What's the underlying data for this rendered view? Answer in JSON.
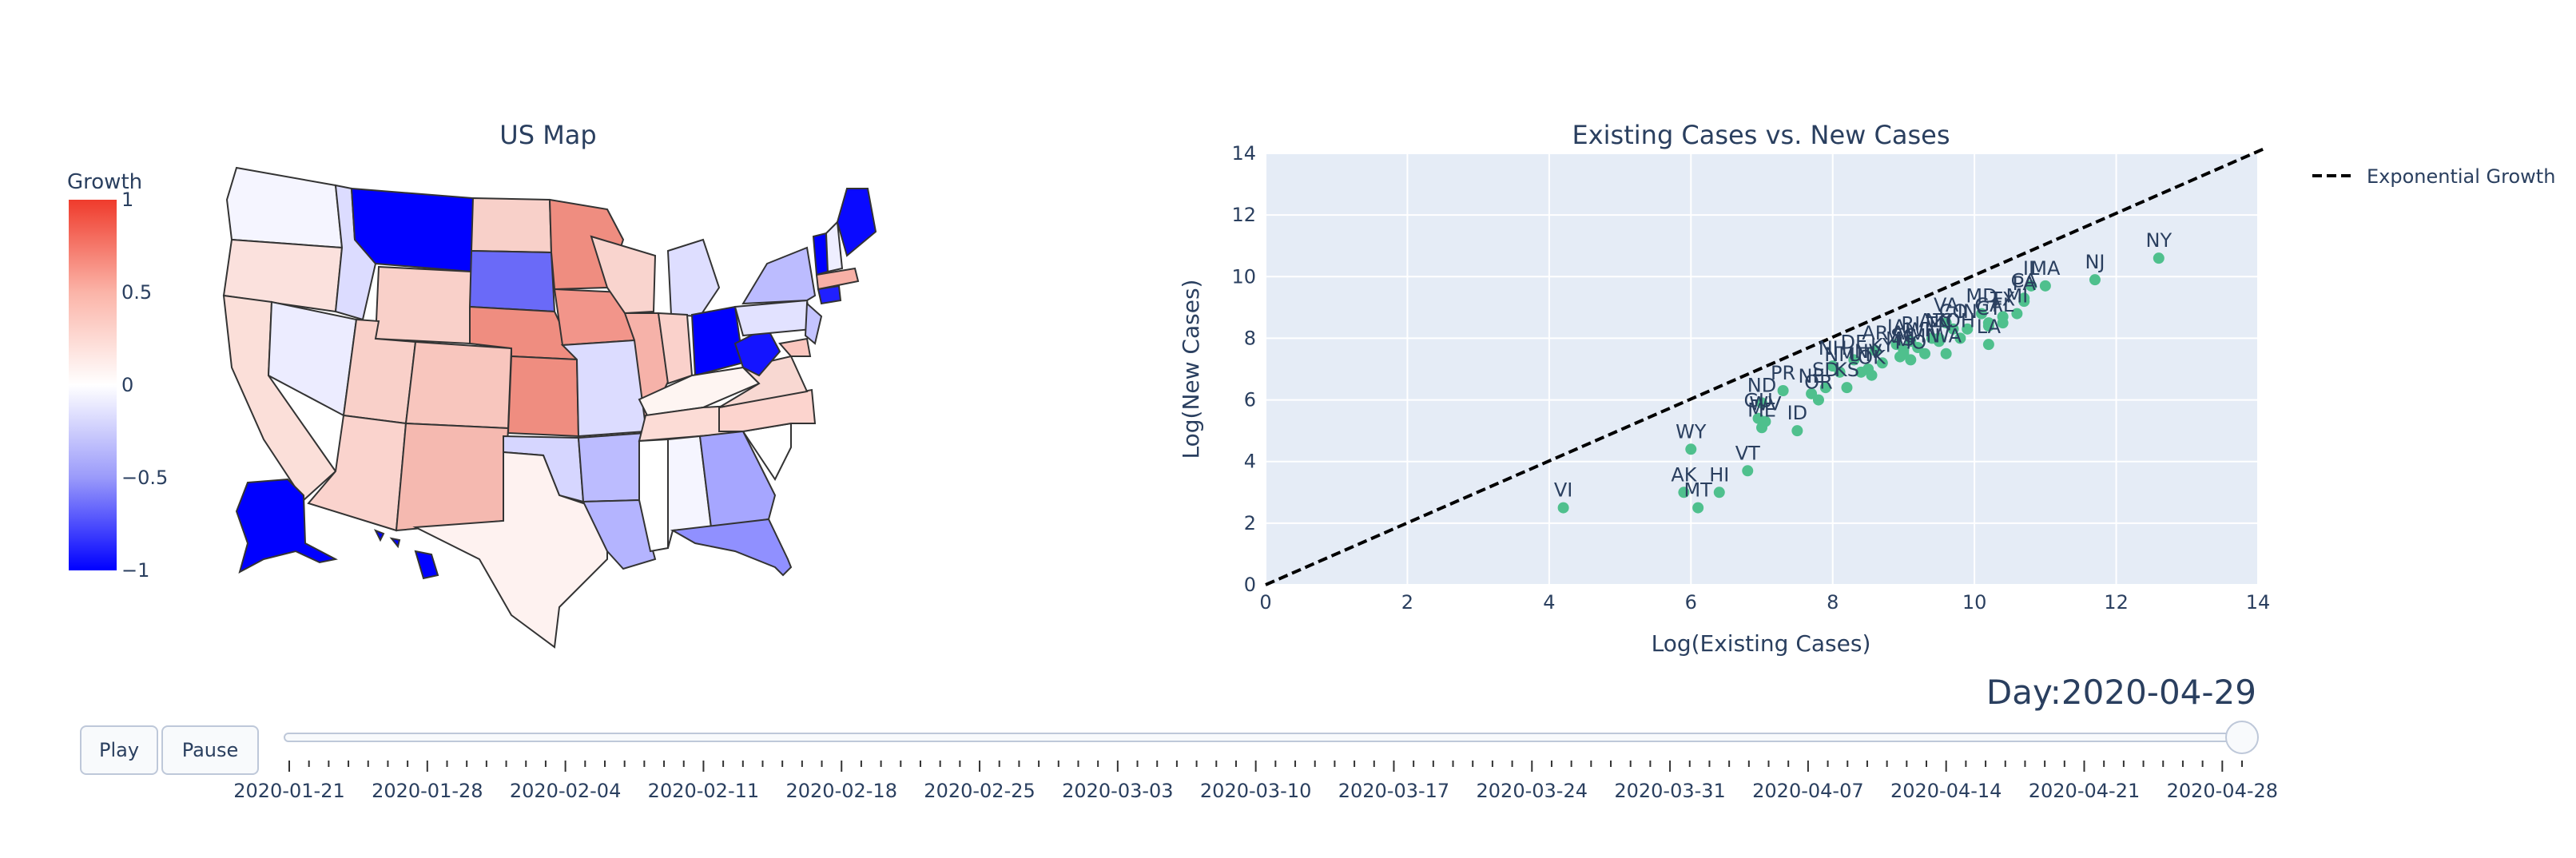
{
  "map": {
    "title": "US Map",
    "colorbar": {
      "title": "Growth",
      "ticks": [
        "1",
        "0.5",
        "0",
        "−0.5",
        "−1"
      ],
      "colorscale": [
        "#ff0000",
        "#ffffff",
        "#0000ff"
      ]
    }
  },
  "chart_data": {
    "type": "scatter",
    "title": "Existing Cases vs. New Cases",
    "xlabel": "Log(Existing Cases)",
    "ylabel": "Log(New Cases)",
    "xlim": [
      0,
      14
    ],
    "ylim": [
      0,
      14
    ],
    "xticks": [
      "0",
      "2",
      "4",
      "6",
      "8",
      "10",
      "12",
      "14"
    ],
    "yticks": [
      "0",
      "2",
      "4",
      "6",
      "8",
      "10",
      "12",
      "14"
    ],
    "grid": true,
    "marker_color": "#4fc08d",
    "line_color": "#000000",
    "legend": {
      "entries": [
        "Exponential Growth"
      ],
      "position": "top-right"
    },
    "reference_line": {
      "name": "Exponential Growth",
      "x": [
        0,
        14
      ],
      "y": [
        0,
        14
      ]
    },
    "points": [
      {
        "label": "VI",
        "x": 4.2,
        "y": 2.5
      },
      {
        "label": "AK",
        "x": 5.9,
        "y": 3.0
      },
      {
        "label": "MT",
        "x": 6.1,
        "y": 2.5
      },
      {
        "label": "HI",
        "x": 6.4,
        "y": 3.0
      },
      {
        "label": "WY",
        "x": 6.0,
        "y": 4.4
      },
      {
        "label": "VT",
        "x": 6.8,
        "y": 3.7
      },
      {
        "label": "ME",
        "x": 7.0,
        "y": 5.1
      },
      {
        "label": "GU",
        "x": 6.95,
        "y": 5.4
      },
      {
        "label": "WV",
        "x": 7.05,
        "y": 5.3
      },
      {
        "label": "ND",
        "x": 7.0,
        "y": 5.9
      },
      {
        "label": "ID",
        "x": 7.5,
        "y": 5.0
      },
      {
        "label": "PR",
        "x": 7.3,
        "y": 6.3
      },
      {
        "label": "NE",
        "x": 7.7,
        "y": 6.2
      },
      {
        "label": "OR",
        "x": 7.8,
        "y": 6.0
      },
      {
        "label": "SD",
        "x": 7.9,
        "y": 6.4
      },
      {
        "label": "NM",
        "x": 8.1,
        "y": 6.9
      },
      {
        "label": "KS",
        "x": 8.2,
        "y": 6.4
      },
      {
        "label": "DE",
        "x": 8.3,
        "y": 7.3
      },
      {
        "label": "NH",
        "x": 8.0,
        "y": 7.1
      },
      {
        "label": "UT",
        "x": 8.4,
        "y": 6.9
      },
      {
        "label": "NV",
        "x": 8.5,
        "y": 7.0
      },
      {
        "label": "OK",
        "x": 8.55,
        "y": 6.8
      },
      {
        "label": "KY",
        "x": 8.7,
        "y": 7.2
      },
      {
        "label": "AR",
        "x": 8.6,
        "y": 7.6
      },
      {
        "label": "IA",
        "x": 8.9,
        "y": 7.8
      },
      {
        "label": "MS",
        "x": 8.95,
        "y": 7.4
      },
      {
        "label": "AL",
        "x": 9.0,
        "y": 7.6
      },
      {
        "label": "MO",
        "x": 9.1,
        "y": 7.3
      },
      {
        "label": "SC",
        "x": 9.0,
        "y": 7.5
      },
      {
        "label": "WI",
        "x": 9.2,
        "y": 7.7
      },
      {
        "label": "RI",
        "x": 9.1,
        "y": 7.9
      },
      {
        "label": "MN",
        "x": 9.3,
        "y": 7.5
      },
      {
        "label": "TN",
        "x": 9.5,
        "y": 7.9
      },
      {
        "label": "VA",
        "x": 9.6,
        "y": 8.5
      },
      {
        "label": "WA",
        "x": 9.6,
        "y": 7.5
      },
      {
        "label": "CO",
        "x": 9.7,
        "y": 8.3
      },
      {
        "label": "OH",
        "x": 9.8,
        "y": 8.0
      },
      {
        "label": "IN",
        "x": 9.9,
        "y": 8.3
      },
      {
        "label": "NC",
        "x": 9.5,
        "y": 8.0
      },
      {
        "label": "MD",
        "x": 10.1,
        "y": 8.8
      },
      {
        "label": "GA",
        "x": 10.2,
        "y": 8.5
      },
      {
        "label": "LA",
        "x": 10.2,
        "y": 7.8
      },
      {
        "label": "CT",
        "x": 10.2,
        "y": 8.4
      },
      {
        "label": "AZ",
        "x": 9.4,
        "y": 8.0
      },
      {
        "label": "TX",
        "x": 10.4,
        "y": 8.7
      },
      {
        "label": "FL",
        "x": 10.4,
        "y": 8.5
      },
      {
        "label": "MI",
        "x": 10.6,
        "y": 8.8
      },
      {
        "label": "PA",
        "x": 10.7,
        "y": 9.2
      },
      {
        "label": "CA",
        "x": 10.7,
        "y": 9.3
      },
      {
        "label": "IL",
        "x": 10.8,
        "y": 9.7
      },
      {
        "label": "MA",
        "x": 11.0,
        "y": 9.7
      },
      {
        "label": "NJ",
        "x": 11.7,
        "y": 9.9
      },
      {
        "label": "NY",
        "x": 12.6,
        "y": 10.6
      }
    ]
  },
  "controls": {
    "play_label": "Play",
    "pause_label": "Pause",
    "day_label": "Day:2020-04-29",
    "slider_value": 1.0,
    "date_ticks": [
      "2020-01-21",
      "2020-01-28",
      "2020-02-04",
      "2020-02-11",
      "2020-02-18",
      "2020-02-25",
      "2020-03-03",
      "2020-03-10",
      "2020-03-17",
      "2020-03-24",
      "2020-03-31",
      "2020-04-07",
      "2020-04-14",
      "2020-04-21",
      "2020-04-28"
    ],
    "tick_count": 100
  }
}
